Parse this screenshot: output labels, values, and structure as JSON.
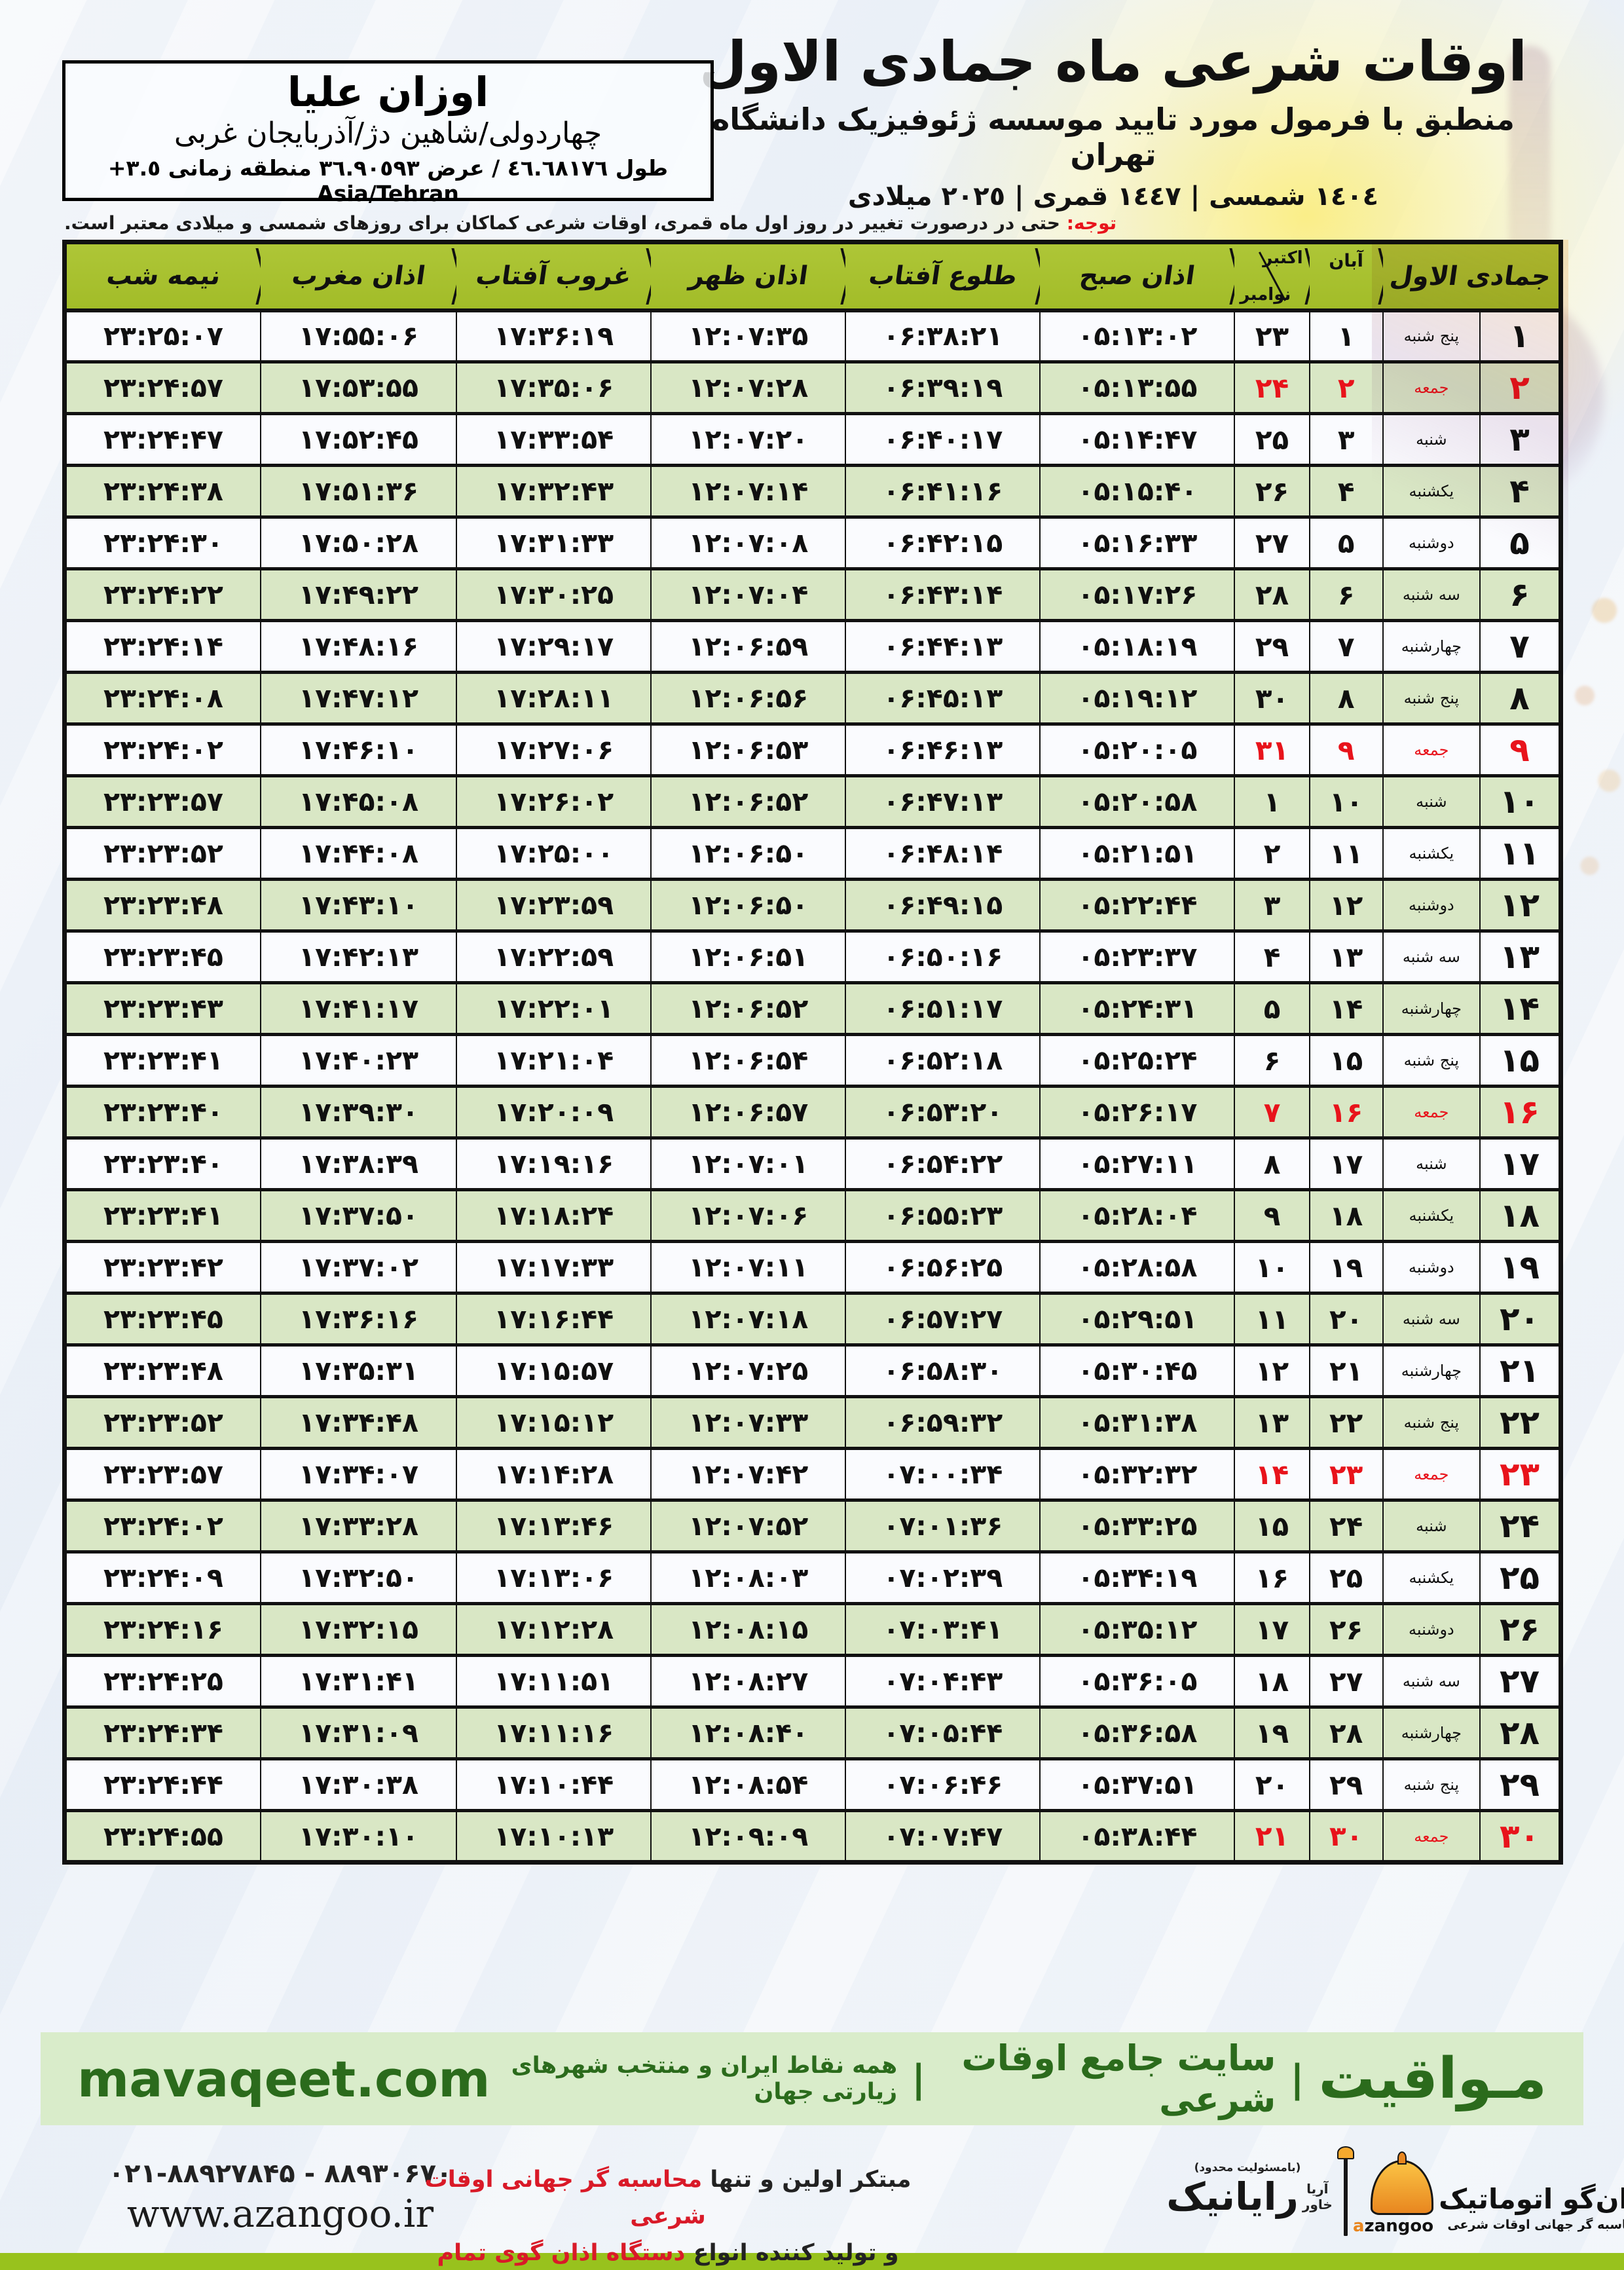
{
  "colors": {
    "header_green": "#a8c32e",
    "row_green": "#d7e6c2",
    "friday_red": "#e8131b",
    "footer_green_bg": "#d9ecca",
    "footer_green_text": "#2b6b1c",
    "bottom_strip": "#98c21d",
    "logo_orange": "#e8861f"
  },
  "header": {
    "title": "اوقات شرعی ماه جمادی الاول",
    "subtitle": "منطبق با فرمول مورد تایید موسسه ژئوفیزیک دانشگاه تهران",
    "dates_line": "١٤٠٤ شمسی | ١٤٤٧ قمری | ٢٠٢٥ میلادی",
    "location": {
      "name": "اوزان علیا",
      "region": "چهاردولی/شاهین دژ/آذربایجان غربی",
      "coords": "طول ٤٦.٦٨١٧٦ / عرض ٣٦.٩٠٥٩٣ منطقه زمانی ٣.٥+ Asia/Tehran"
    },
    "notice_label": "توجه:",
    "notice_text": " حتی در درصورت تغییر در روز اول ماه قمری، اوقات شرعی کماکان برای روزهای شمسی و میلادی معتبر است."
  },
  "table": {
    "headers": {
      "hijri_month": "جمادی الاول",
      "aban": "آبان",
      "october": "اکتبر",
      "november": "نوامبر",
      "fajr": "اذان صبح",
      "sunrise": "طلوع آفتاب",
      "dhuhr": "اذان ظهر",
      "sunset": "غروب آفتاب",
      "maghrib": "اذان مغرب",
      "midnight": "نیمه شب"
    },
    "rows": [
      {
        "day": "۱",
        "weekday": "پنج شنبه",
        "aban": "۱",
        "greg": "۲۳",
        "fajr": "۰۵:۱۳:۰۲",
        "sunrise": "۰۶:۳۸:۲۱",
        "dhuhr": "۱۲:۰۷:۳۵",
        "sunset": "۱۷:۳۶:۱۹",
        "maghrib": "۱۷:۵۵:۰۶",
        "midnight": "۲۳:۲۵:۰۷",
        "friday": false
      },
      {
        "day": "۲",
        "weekday": "جمعه",
        "aban": "۲",
        "greg": "۲۴",
        "fajr": "۰۵:۱۳:۵۵",
        "sunrise": "۰۶:۳۹:۱۹",
        "dhuhr": "۱۲:۰۷:۲۸",
        "sunset": "۱۷:۳۵:۰۶",
        "maghrib": "۱۷:۵۳:۵۵",
        "midnight": "۲۳:۲۴:۵۷",
        "friday": true
      },
      {
        "day": "۳",
        "weekday": "شنبه",
        "aban": "۳",
        "greg": "۲۵",
        "fajr": "۰۵:۱۴:۴۷",
        "sunrise": "۰۶:۴۰:۱۷",
        "dhuhr": "۱۲:۰۷:۲۰",
        "sunset": "۱۷:۳۳:۵۴",
        "maghrib": "۱۷:۵۲:۴۵",
        "midnight": "۲۳:۲۴:۴۷",
        "friday": false
      },
      {
        "day": "۴",
        "weekday": "یکشنبه",
        "aban": "۴",
        "greg": "۲۶",
        "fajr": "۰۵:۱۵:۴۰",
        "sunrise": "۰۶:۴۱:۱۶",
        "dhuhr": "۱۲:۰۷:۱۴",
        "sunset": "۱۷:۳۲:۴۳",
        "maghrib": "۱۷:۵۱:۳۶",
        "midnight": "۲۳:۲۴:۳۸",
        "friday": false
      },
      {
        "day": "۵",
        "weekday": "دوشنبه",
        "aban": "۵",
        "greg": "۲۷",
        "fajr": "۰۵:۱۶:۳۳",
        "sunrise": "۰۶:۴۲:۱۵",
        "dhuhr": "۱۲:۰۷:۰۸",
        "sunset": "۱۷:۳۱:۳۳",
        "maghrib": "۱۷:۵۰:۲۸",
        "midnight": "۲۳:۲۴:۳۰",
        "friday": false
      },
      {
        "day": "۶",
        "weekday": "سه شنبه",
        "aban": "۶",
        "greg": "۲۸",
        "fajr": "۰۵:۱۷:۲۶",
        "sunrise": "۰۶:۴۳:۱۴",
        "dhuhr": "۱۲:۰۷:۰۴",
        "sunset": "۱۷:۳۰:۲۵",
        "maghrib": "۱۷:۴۹:۲۲",
        "midnight": "۲۳:۲۴:۲۲",
        "friday": false
      },
      {
        "day": "۷",
        "weekday": "چهارشنبه",
        "aban": "۷",
        "greg": "۲۹",
        "fajr": "۰۵:۱۸:۱۹",
        "sunrise": "۰۶:۴۴:۱۳",
        "dhuhr": "۱۲:۰۶:۵۹",
        "sunset": "۱۷:۲۹:۱۷",
        "maghrib": "۱۷:۴۸:۱۶",
        "midnight": "۲۳:۲۴:۱۴",
        "friday": false
      },
      {
        "day": "۸",
        "weekday": "پنج شنبه",
        "aban": "۸",
        "greg": "۳۰",
        "fajr": "۰۵:۱۹:۱۲",
        "sunrise": "۰۶:۴۵:۱۳",
        "dhuhr": "۱۲:۰۶:۵۶",
        "sunset": "۱۷:۲۸:۱۱",
        "maghrib": "۱۷:۴۷:۱۲",
        "midnight": "۲۳:۲۴:۰۸",
        "friday": false
      },
      {
        "day": "۹",
        "weekday": "جمعه",
        "aban": "۹",
        "greg": "۳۱",
        "fajr": "۰۵:۲۰:۰۵",
        "sunrise": "۰۶:۴۶:۱۳",
        "dhuhr": "۱۲:۰۶:۵۳",
        "sunset": "۱۷:۲۷:۰۶",
        "maghrib": "۱۷:۴۶:۱۰",
        "midnight": "۲۳:۲۴:۰۲",
        "friday": true
      },
      {
        "day": "۱۰",
        "weekday": "شنبه",
        "aban": "۱۰",
        "greg": "۱",
        "fajr": "۰۵:۲۰:۵۸",
        "sunrise": "۰۶:۴۷:۱۳",
        "dhuhr": "۱۲:۰۶:۵۲",
        "sunset": "۱۷:۲۶:۰۲",
        "maghrib": "۱۷:۴۵:۰۸",
        "midnight": "۲۳:۲۳:۵۷",
        "friday": false
      },
      {
        "day": "۱۱",
        "weekday": "یکشنبه",
        "aban": "۱۱",
        "greg": "۲",
        "fajr": "۰۵:۲۱:۵۱",
        "sunrise": "۰۶:۴۸:۱۴",
        "dhuhr": "۱۲:۰۶:۵۰",
        "sunset": "۱۷:۲۵:۰۰",
        "maghrib": "۱۷:۴۴:۰۸",
        "midnight": "۲۳:۲۳:۵۲",
        "friday": false
      },
      {
        "day": "۱۲",
        "weekday": "دوشنبه",
        "aban": "۱۲",
        "greg": "۳",
        "fajr": "۰۵:۲۲:۴۴",
        "sunrise": "۰۶:۴۹:۱۵",
        "dhuhr": "۱۲:۰۶:۵۰",
        "sunset": "۱۷:۲۳:۵۹",
        "maghrib": "۱۷:۴۳:۱۰",
        "midnight": "۲۳:۲۳:۴۸",
        "friday": false
      },
      {
        "day": "۱۳",
        "weekday": "سه شنبه",
        "aban": "۱۳",
        "greg": "۴",
        "fajr": "۰۵:۲۳:۳۷",
        "sunrise": "۰۶:۵۰:۱۶",
        "dhuhr": "۱۲:۰۶:۵۱",
        "sunset": "۱۷:۲۲:۵۹",
        "maghrib": "۱۷:۴۲:۱۳",
        "midnight": "۲۳:۲۳:۴۵",
        "friday": false
      },
      {
        "day": "۱۴",
        "weekday": "چهارشنبه",
        "aban": "۱۴",
        "greg": "۵",
        "fajr": "۰۵:۲۴:۳۱",
        "sunrise": "۰۶:۵۱:۱۷",
        "dhuhr": "۱۲:۰۶:۵۲",
        "sunset": "۱۷:۲۲:۰۱",
        "maghrib": "۱۷:۴۱:۱۷",
        "midnight": "۲۳:۲۳:۴۳",
        "friday": false
      },
      {
        "day": "۱۵",
        "weekday": "پنج شنبه",
        "aban": "۱۵",
        "greg": "۶",
        "fajr": "۰۵:۲۵:۲۴",
        "sunrise": "۰۶:۵۲:۱۸",
        "dhuhr": "۱۲:۰۶:۵۴",
        "sunset": "۱۷:۲۱:۰۴",
        "maghrib": "۱۷:۴۰:۲۳",
        "midnight": "۲۳:۲۳:۴۱",
        "friday": false
      },
      {
        "day": "۱۶",
        "weekday": "جمعه",
        "aban": "۱۶",
        "greg": "۷",
        "fajr": "۰۵:۲۶:۱۷",
        "sunrise": "۰۶:۵۳:۲۰",
        "dhuhr": "۱۲:۰۶:۵۷",
        "sunset": "۱۷:۲۰:۰۹",
        "maghrib": "۱۷:۳۹:۳۰",
        "midnight": "۲۳:۲۳:۴۰",
        "friday": true
      },
      {
        "day": "۱۷",
        "weekday": "شنبه",
        "aban": "۱۷",
        "greg": "۸",
        "fajr": "۰۵:۲۷:۱۱",
        "sunrise": "۰۶:۵۴:۲۲",
        "dhuhr": "۱۲:۰۷:۰۱",
        "sunset": "۱۷:۱۹:۱۶",
        "maghrib": "۱۷:۳۸:۳۹",
        "midnight": "۲۳:۲۳:۴۰",
        "friday": false
      },
      {
        "day": "۱۸",
        "weekday": "یکشنبه",
        "aban": "۱۸",
        "greg": "۹",
        "fajr": "۰۵:۲۸:۰۴",
        "sunrise": "۰۶:۵۵:۲۳",
        "dhuhr": "۱۲:۰۷:۰۶",
        "sunset": "۱۷:۱۸:۲۴",
        "maghrib": "۱۷:۳۷:۵۰",
        "midnight": "۲۳:۲۳:۴۱",
        "friday": false
      },
      {
        "day": "۱۹",
        "weekday": "دوشنبه",
        "aban": "۱۹",
        "greg": "۱۰",
        "fajr": "۰۵:۲۸:۵۸",
        "sunrise": "۰۶:۵۶:۲۵",
        "dhuhr": "۱۲:۰۷:۱۱",
        "sunset": "۱۷:۱۷:۳۳",
        "maghrib": "۱۷:۳۷:۰۲",
        "midnight": "۲۳:۲۳:۴۲",
        "friday": false
      },
      {
        "day": "۲۰",
        "weekday": "سه شنبه",
        "aban": "۲۰",
        "greg": "۱۱",
        "fajr": "۰۵:۲۹:۵۱",
        "sunrise": "۰۶:۵۷:۲۷",
        "dhuhr": "۱۲:۰۷:۱۸",
        "sunset": "۱۷:۱۶:۴۴",
        "maghrib": "۱۷:۳۶:۱۶",
        "midnight": "۲۳:۲۳:۴۵",
        "friday": false
      },
      {
        "day": "۲۱",
        "weekday": "چهارشنبه",
        "aban": "۲۱",
        "greg": "۱۲",
        "fajr": "۰۵:۳۰:۴۵",
        "sunrise": "۰۶:۵۸:۳۰",
        "dhuhr": "۱۲:۰۷:۲۵",
        "sunset": "۱۷:۱۵:۵۷",
        "maghrib": "۱۷:۳۵:۳۱",
        "midnight": "۲۳:۲۳:۴۸",
        "friday": false
      },
      {
        "day": "۲۲",
        "weekday": "پنج شنبه",
        "aban": "۲۲",
        "greg": "۱۳",
        "fajr": "۰۵:۳۱:۳۸",
        "sunrise": "۰۶:۵۹:۳۲",
        "dhuhr": "۱۲:۰۷:۳۳",
        "sunset": "۱۷:۱۵:۱۲",
        "maghrib": "۱۷:۳۴:۴۸",
        "midnight": "۲۳:۲۳:۵۲",
        "friday": false
      },
      {
        "day": "۲۳",
        "weekday": "جمعه",
        "aban": "۲۳",
        "greg": "۱۴",
        "fajr": "۰۵:۳۲:۳۲",
        "sunrise": "۰۷:۰۰:۳۴",
        "dhuhr": "۱۲:۰۷:۴۲",
        "sunset": "۱۷:۱۴:۲۸",
        "maghrib": "۱۷:۳۴:۰۷",
        "midnight": "۲۳:۲۳:۵۷",
        "friday": true
      },
      {
        "day": "۲۴",
        "weekday": "شنبه",
        "aban": "۲۴",
        "greg": "۱۵",
        "fajr": "۰۵:۳۳:۲۵",
        "sunrise": "۰۷:۰۱:۳۶",
        "dhuhr": "۱۲:۰۷:۵۲",
        "sunset": "۱۷:۱۳:۴۶",
        "maghrib": "۱۷:۳۳:۲۸",
        "midnight": "۲۳:۲۴:۰۲",
        "friday": false
      },
      {
        "day": "۲۵",
        "weekday": "یکشنبه",
        "aban": "۲۵",
        "greg": "۱۶",
        "fajr": "۰۵:۳۴:۱۹",
        "sunrise": "۰۷:۰۲:۳۹",
        "dhuhr": "۱۲:۰۸:۰۳",
        "sunset": "۱۷:۱۳:۰۶",
        "maghrib": "۱۷:۳۲:۵۰",
        "midnight": "۲۳:۲۴:۰۹",
        "friday": false
      },
      {
        "day": "۲۶",
        "weekday": "دوشنبه",
        "aban": "۲۶",
        "greg": "۱۷",
        "fajr": "۰۵:۳۵:۱۲",
        "sunrise": "۰۷:۰۳:۴۱",
        "dhuhr": "۱۲:۰۸:۱۵",
        "sunset": "۱۷:۱۲:۲۸",
        "maghrib": "۱۷:۳۲:۱۵",
        "midnight": "۲۳:۲۴:۱۶",
        "friday": false
      },
      {
        "day": "۲۷",
        "weekday": "سه شنبه",
        "aban": "۲۷",
        "greg": "۱۸",
        "fajr": "۰۵:۳۶:۰۵",
        "sunrise": "۰۷:۰۴:۴۳",
        "dhuhr": "۱۲:۰۸:۲۷",
        "sunset": "۱۷:۱۱:۵۱",
        "maghrib": "۱۷:۳۱:۴۱",
        "midnight": "۲۳:۲۴:۲۵",
        "friday": false
      },
      {
        "day": "۲۸",
        "weekday": "چهارشنبه",
        "aban": "۲۸",
        "greg": "۱۹",
        "fajr": "۰۵:۳۶:۵۸",
        "sunrise": "۰۷:۰۵:۴۴",
        "dhuhr": "۱۲:۰۸:۴۰",
        "sunset": "۱۷:۱۱:۱۶",
        "maghrib": "۱۷:۳۱:۰۹",
        "midnight": "۲۳:۲۴:۳۴",
        "friday": false
      },
      {
        "day": "۲۹",
        "weekday": "پنج شنبه",
        "aban": "۲۹",
        "greg": "۲۰",
        "fajr": "۰۵:۳۷:۵۱",
        "sunrise": "۰۷:۰۶:۴۶",
        "dhuhr": "۱۲:۰۸:۵۴",
        "sunset": "۱۷:۱۰:۴۴",
        "maghrib": "۱۷:۳۰:۳۸",
        "midnight": "۲۳:۲۴:۴۴",
        "friday": false
      },
      {
        "day": "۳۰",
        "weekday": "جمعه",
        "aban": "۳۰",
        "greg": "۲۱",
        "fajr": "۰۵:۳۸:۴۴",
        "sunrise": "۰۷:۰۷:۴۷",
        "dhuhr": "۱۲:۰۹:۰۹",
        "sunset": "۱۷:۱۰:۱۳",
        "maghrib": "۱۷:۳۰:۱۰",
        "midnight": "۲۳:۲۴:۵۵",
        "friday": true
      }
    ]
  },
  "footer": {
    "brand": "مـواقیت",
    "separator": "|",
    "site_label": "سایت جامع اوقات شرعی",
    "coverage": "همه نقاط ایران و منتخب شهرهای زیارتی جهان",
    "domain": "mavaqeet.com"
  },
  "bottom": {
    "phones": "۰۲۱-۸۸۹۲۷۸۴۵ - ۸۸۹۳۰۶۷۰",
    "website": "www.azangoo.ir",
    "promo_line1_black": "مبتکر اولین و تنها ",
    "promo_line1_red": "محاسبه گر جهانی اوقات شرعی",
    "promo_line2_black": "و تولید کننده انواع ",
    "promo_line2_red": "دستگاه اذان گوی تمام خودکار ماهواره ای",
    "rayanik": {
      "responsibility": "(بامسئولیت محدود)",
      "name": "رایانیک",
      "sub1": "آریا",
      "sub2": "خاور"
    },
    "azangoo": {
      "name_first": "ا",
      "name_rest": "ذان‌گو اتوماتیک",
      "tagline": "محاسبه گر جهانی اوقات شرعی",
      "latin_a": "a",
      "latin_rest": "zangoo"
    }
  }
}
